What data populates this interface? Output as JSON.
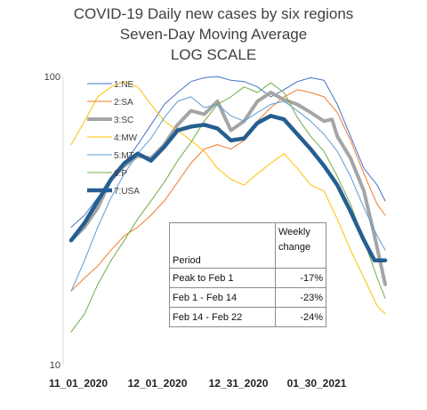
{
  "chart_data": {
    "type": "line",
    "title": [
      "COVID-19 Daily new cases by six regions",
      "Seven-Day Moving Average",
      "LOG SCALE"
    ],
    "yscale": "log",
    "ylim": [
      10,
      100
    ],
    "ytick_labels": [
      "100",
      "10"
    ],
    "x_tick_labels": [
      "11_01_2020",
      "12_01_2020",
      "12_31_2020",
      "01_30_2021"
    ],
    "x_range_days": [
      0,
      118
    ],
    "grid": false,
    "legend_position": "top-left",
    "series": [
      {
        "name": "1:NE",
        "color": "#4472c4",
        "width": 1,
        "points": [
          [
            0,
            30
          ],
          [
            5,
            33
          ],
          [
            10,
            38
          ],
          [
            15,
            43
          ],
          [
            20,
            50
          ],
          [
            25,
            58
          ],
          [
            30,
            68
          ],
          [
            35,
            80
          ],
          [
            40,
            88
          ],
          [
            45,
            96
          ],
          [
            50,
            99
          ],
          [
            55,
            100
          ],
          [
            60,
            97
          ],
          [
            65,
            96
          ],
          [
            70,
            92
          ],
          [
            75,
            85
          ],
          [
            80,
            90
          ],
          [
            85,
            96
          ],
          [
            90,
            99
          ],
          [
            95,
            97
          ],
          [
            100,
            80
          ],
          [
            105,
            62
          ],
          [
            110,
            48
          ],
          [
            115,
            42
          ],
          [
            118,
            37
          ]
        ]
      },
      {
        "name": "2:SA",
        "color": "#ed7d31",
        "width": 1,
        "points": [
          [
            0,
            18
          ],
          [
            5,
            20
          ],
          [
            10,
            22
          ],
          [
            15,
            25
          ],
          [
            20,
            28
          ],
          [
            25,
            30
          ],
          [
            30,
            33
          ],
          [
            35,
            37
          ],
          [
            40,
            43
          ],
          [
            45,
            50
          ],
          [
            50,
            56
          ],
          [
            55,
            58
          ],
          [
            60,
            56
          ],
          [
            65,
            60
          ],
          [
            70,
            70
          ],
          [
            75,
            78
          ],
          [
            80,
            85
          ],
          [
            85,
            90
          ],
          [
            90,
            88
          ],
          [
            95,
            85
          ],
          [
            100,
            75
          ],
          [
            105,
            60
          ],
          [
            110,
            46
          ],
          [
            115,
            36
          ],
          [
            118,
            33
          ]
        ]
      },
      {
        "name": "3:SC",
        "color": "#a5a5a5",
        "width": 4,
        "points": [
          [
            0,
            27
          ],
          [
            5,
            30
          ],
          [
            10,
            35
          ],
          [
            15,
            44
          ],
          [
            20,
            49
          ],
          [
            25,
            53
          ],
          [
            30,
            52
          ],
          [
            35,
            58
          ],
          [
            40,
            68
          ],
          [
            45,
            76
          ],
          [
            50,
            74
          ],
          [
            55,
            82
          ],
          [
            60,
            65
          ],
          [
            65,
            70
          ],
          [
            70,
            82
          ],
          [
            75,
            88
          ],
          [
            80,
            83
          ],
          [
            85,
            80
          ],
          [
            90,
            75
          ],
          [
            95,
            70
          ],
          [
            98,
            71
          ],
          [
            100,
            62
          ],
          [
            105,
            52
          ],
          [
            110,
            40
          ],
          [
            114,
            28
          ],
          [
            118,
            19
          ]
        ]
      },
      {
        "name": "4:MW",
        "color": "#ffc000",
        "width": 1,
        "points": [
          [
            0,
            58
          ],
          [
            5,
            70
          ],
          [
            10,
            85
          ],
          [
            15,
            92
          ],
          [
            20,
            96
          ],
          [
            25,
            92
          ],
          [
            30,
            80
          ],
          [
            35,
            70
          ],
          [
            40,
            65
          ],
          [
            45,
            60
          ],
          [
            50,
            55
          ],
          [
            55,
            48
          ],
          [
            60,
            44
          ],
          [
            65,
            42
          ],
          [
            70,
            46
          ],
          [
            75,
            50
          ],
          [
            80,
            54
          ],
          [
            85,
            48
          ],
          [
            90,
            42
          ],
          [
            95,
            40
          ],
          [
            100,
            32
          ],
          [
            105,
            25
          ],
          [
            110,
            20
          ],
          [
            115,
            16
          ],
          [
            118,
            15
          ]
        ]
      },
      {
        "name": "5:MT",
        "color": "#5b9bd5",
        "width": 1,
        "points": [
          [
            0,
            18
          ],
          [
            5,
            23
          ],
          [
            10,
            30
          ],
          [
            15,
            38
          ],
          [
            20,
            46
          ],
          [
            25,
            54
          ],
          [
            30,
            61
          ],
          [
            35,
            72
          ],
          [
            40,
            82
          ],
          [
            45,
            85
          ],
          [
            50,
            78
          ],
          [
            55,
            80
          ],
          [
            60,
            73
          ],
          [
            65,
            70
          ],
          [
            70,
            75
          ],
          [
            75,
            80
          ],
          [
            80,
            82
          ],
          [
            85,
            76
          ],
          [
            90,
            70
          ],
          [
            95,
            63
          ],
          [
            100,
            55
          ],
          [
            105,
            45
          ],
          [
            110,
            35
          ],
          [
            115,
            28
          ],
          [
            118,
            25
          ]
        ]
      },
      {
        "name": "6:P",
        "color": "#70ad47",
        "width": 1,
        "points": [
          [
            0,
            13
          ],
          [
            5,
            15
          ],
          [
            10,
            19
          ],
          [
            15,
            23
          ],
          [
            20,
            27
          ],
          [
            25,
            32
          ],
          [
            30,
            37
          ],
          [
            35,
            43
          ],
          [
            40,
            51
          ],
          [
            45,
            59
          ],
          [
            50,
            70
          ],
          [
            55,
            80
          ],
          [
            60,
            85
          ],
          [
            65,
            92
          ],
          [
            70,
            88
          ],
          [
            75,
            95
          ],
          [
            80,
            88
          ],
          [
            85,
            72
          ],
          [
            90,
            62
          ],
          [
            95,
            55
          ],
          [
            100,
            45
          ],
          [
            105,
            36
          ],
          [
            110,
            27
          ],
          [
            115,
            20
          ],
          [
            118,
            17
          ]
        ]
      },
      {
        "name": "7:USA",
        "color": "#255e91",
        "width": 4.5,
        "points": [
          [
            0,
            27
          ],
          [
            5,
            31
          ],
          [
            10,
            37
          ],
          [
            15,
            44
          ],
          [
            20,
            50
          ],
          [
            25,
            54
          ],
          [
            30,
            51
          ],
          [
            35,
            57
          ],
          [
            40,
            65
          ],
          [
            45,
            67
          ],
          [
            50,
            68
          ],
          [
            55,
            66
          ],
          [
            60,
            60
          ],
          [
            65,
            61
          ],
          [
            70,
            69
          ],
          [
            75,
            73
          ],
          [
            80,
            71
          ],
          [
            85,
            63
          ],
          [
            90,
            56
          ],
          [
            95,
            49
          ],
          [
            100,
            42
          ],
          [
            105,
            34
          ],
          [
            110,
            27
          ],
          [
            114,
            23
          ],
          [
            118,
            23
          ]
        ]
      }
    ],
    "table": {
      "header": {
        "period": "Period",
        "change": [
          "Weekly",
          "change"
        ]
      },
      "rows": [
        {
          "period": "Peak to Feb 1",
          "change": "-17%"
        },
        {
          "period": "Feb 1 - Feb 14",
          "change": "-23%"
        },
        {
          "period": "Feb 14 - Feb 22",
          "change": "-24%"
        }
      ]
    }
  }
}
